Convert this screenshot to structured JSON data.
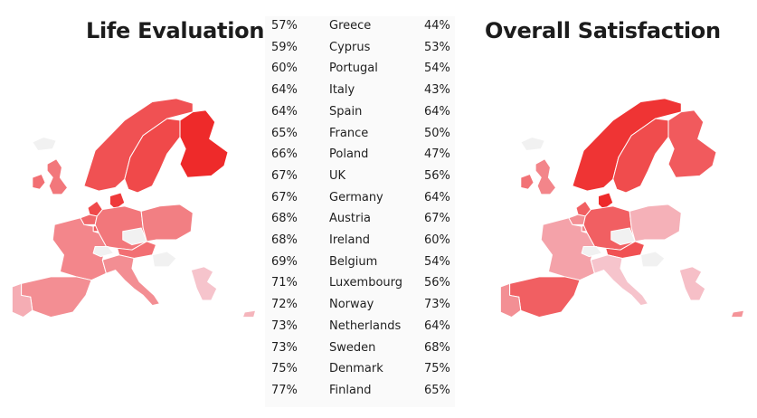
{
  "left_title": "Life Evaluation",
  "right_title": "Overall Satisfaction",
  "colors": {
    "scale_low": "#f6c4cc",
    "scale_high": "#ee2a2a",
    "no_data": "#f1f1f1"
  },
  "rows": [
    {
      "country": "Greece",
      "life_evaluation": "57%",
      "overall_satisfaction": "44%"
    },
    {
      "country": "Cyprus",
      "life_evaluation": "59%",
      "overall_satisfaction": "53%"
    },
    {
      "country": "Portugal",
      "life_evaluation": "60%",
      "overall_satisfaction": "54%"
    },
    {
      "country": "Italy",
      "life_evaluation": "64%",
      "overall_satisfaction": "43%"
    },
    {
      "country": "Spain",
      "life_evaluation": "64%",
      "overall_satisfaction": "64%"
    },
    {
      "country": "France",
      "life_evaluation": "65%",
      "overall_satisfaction": "50%"
    },
    {
      "country": "Poland",
      "life_evaluation": "66%",
      "overall_satisfaction": "47%"
    },
    {
      "country": "UK",
      "life_evaluation": "67%",
      "overall_satisfaction": "56%"
    },
    {
      "country": "Germany",
      "life_evaluation": "67%",
      "overall_satisfaction": "64%"
    },
    {
      "country": "Austria",
      "life_evaluation": "68%",
      "overall_satisfaction": "67%"
    },
    {
      "country": "Ireland",
      "life_evaluation": "68%",
      "overall_satisfaction": "60%"
    },
    {
      "country": "Belgium",
      "life_evaluation": "69%",
      "overall_satisfaction": "54%"
    },
    {
      "country": "Luxembourg",
      "life_evaluation": "71%",
      "overall_satisfaction": "56%"
    },
    {
      "country": "Norway",
      "life_evaluation": "72%",
      "overall_satisfaction": "73%"
    },
    {
      "country": "Netherlands",
      "life_evaluation": "73%",
      "overall_satisfaction": "64%"
    },
    {
      "country": "Sweden",
      "life_evaluation": "73%",
      "overall_satisfaction": "68%"
    },
    {
      "country": "Denmark",
      "life_evaluation": "75%",
      "overall_satisfaction": "75%"
    },
    {
      "country": "Finland",
      "life_evaluation": "77%",
      "overall_satisfaction": "65%"
    }
  ]
}
